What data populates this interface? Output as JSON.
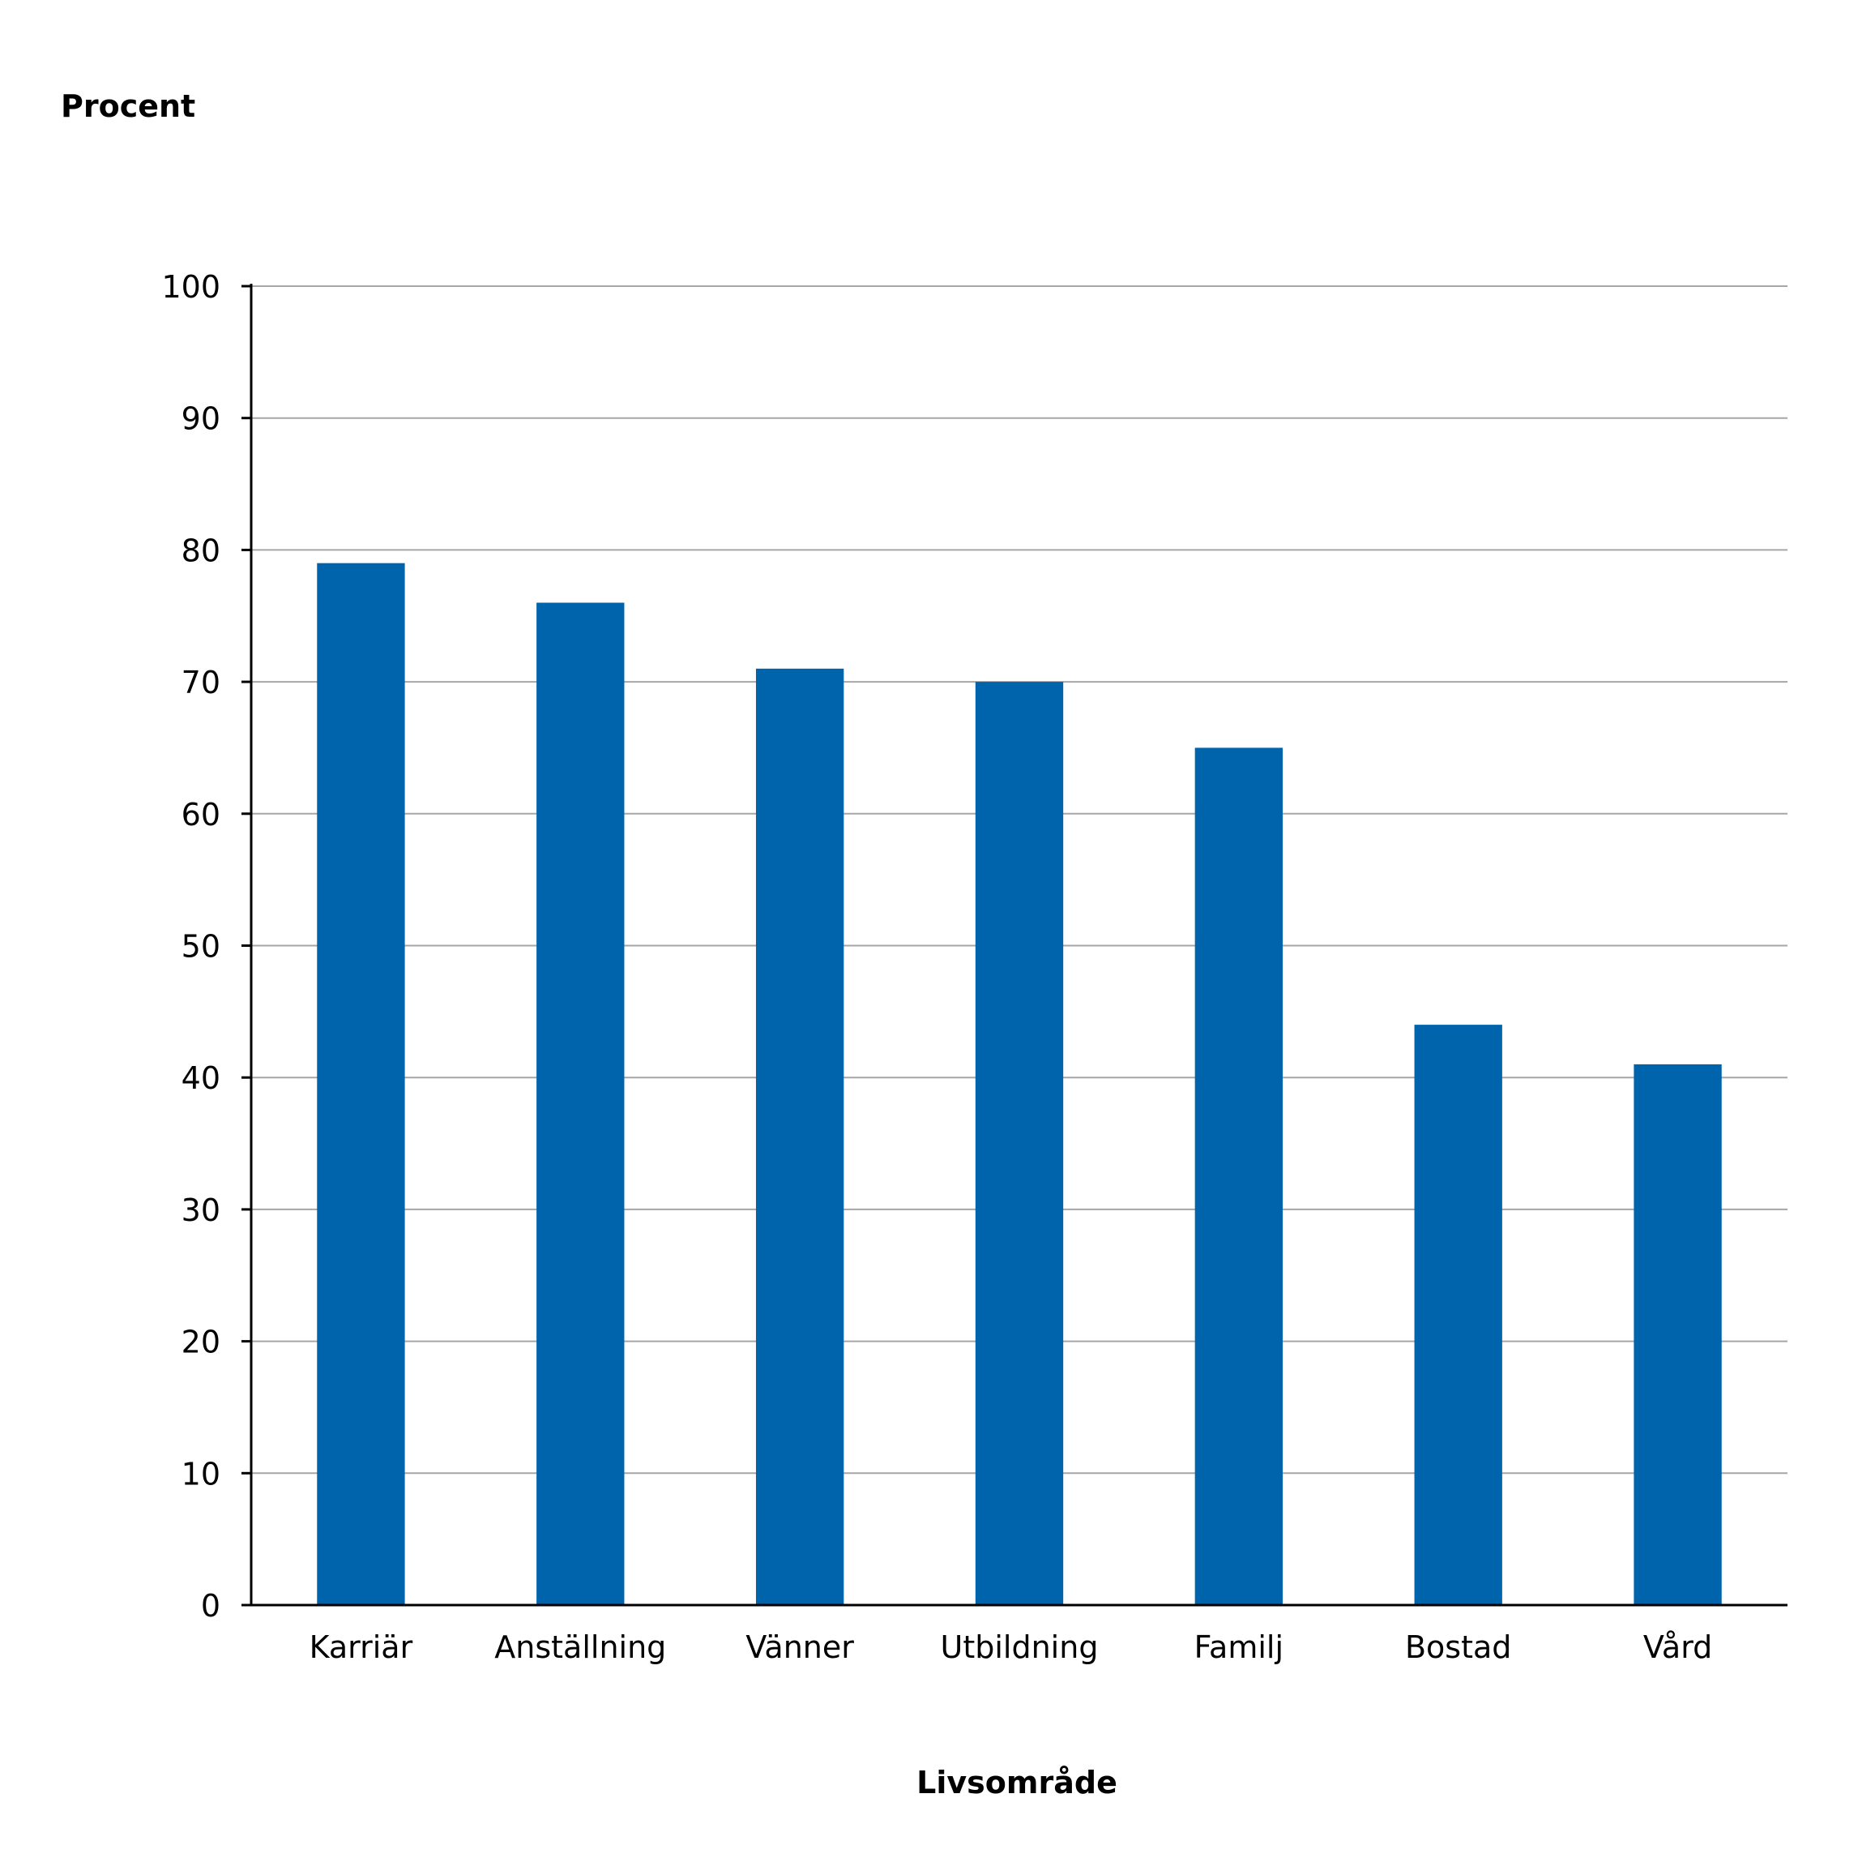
{
  "chart_data": {
    "type": "bar",
    "ylabel": "Procent",
    "xlabel": "Livsområde",
    "categories": [
      "Karriär",
      "Anställning",
      "Vänner",
      "Utbildning",
      "Familj",
      "Bostad",
      "Vård"
    ],
    "values": [
      79,
      76,
      71,
      70,
      65,
      44,
      41
    ],
    "ylim": [
      0,
      100
    ],
    "yticks": [
      0,
      10,
      20,
      30,
      40,
      50,
      60,
      70,
      80,
      90,
      100
    ],
    "grid": true,
    "bar_color": "#0064ad"
  }
}
